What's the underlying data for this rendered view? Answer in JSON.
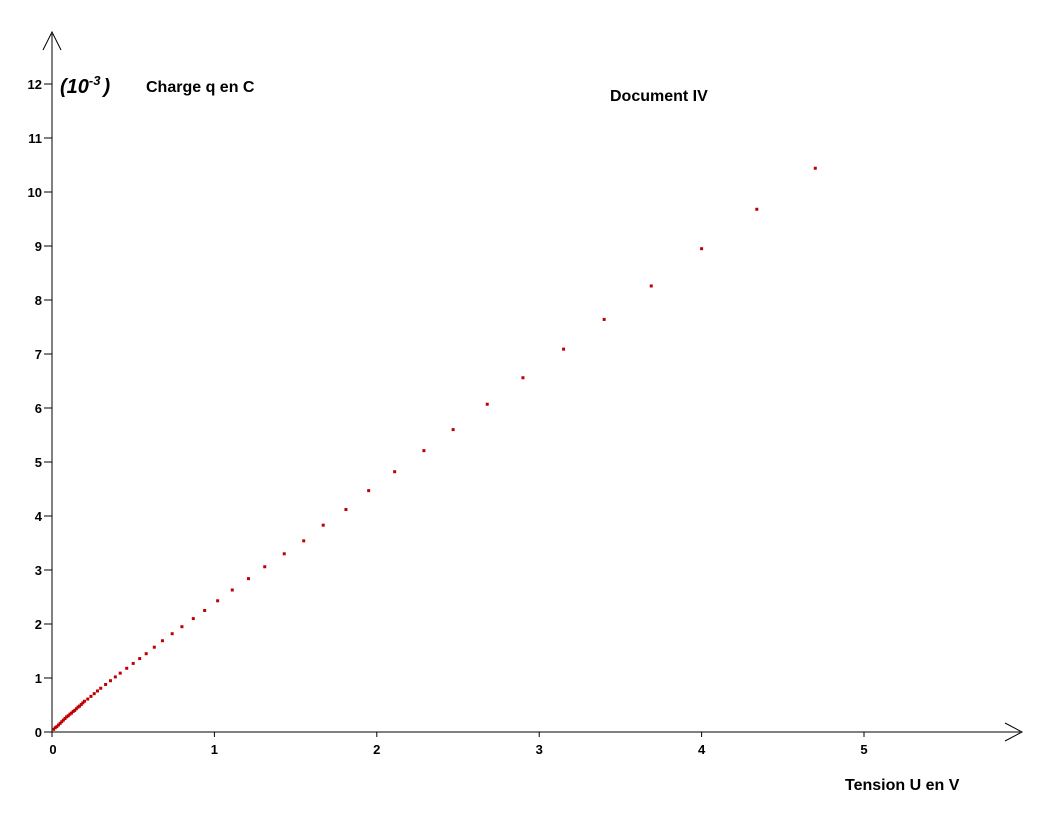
{
  "document_label": "Document IV",
  "chart_data": {
    "type": "scatter",
    "title": "",
    "ylabel_factor": "(10",
    "ylabel_exponent": "-3",
    "ylabel_factor_close": ")",
    "ylabel": "Charge q en C",
    "xlabel": "Tension U en V",
    "xlim": [
      0,
      5.9
    ],
    "ylim": [
      0,
      12.8
    ],
    "x_ticks": [
      "0",
      "1",
      "2",
      "3",
      "4",
      "5"
    ],
    "y_ticks": [
      "0",
      "1",
      "2",
      "3",
      "4",
      "5",
      "6",
      "7",
      "8",
      "9",
      "10",
      "11",
      "12"
    ],
    "grid": false,
    "point_color": "#c00000",
    "series": [
      {
        "x": [
          0.01,
          0.02,
          0.03,
          0.04,
          0.05,
          0.06,
          0.07,
          0.08,
          0.09,
          0.1,
          0.11,
          0.12,
          0.13,
          0.14,
          0.15,
          0.16,
          0.17,
          0.18,
          0.19,
          0.2,
          0.22,
          0.24,
          0.26,
          0.28,
          0.3,
          0.33,
          0.36,
          0.39,
          0.42,
          0.46,
          0.5,
          0.54,
          0.58,
          0.63,
          0.68,
          0.74,
          0.8,
          0.87,
          0.94,
          1.02,
          1.11,
          1.21,
          1.31,
          1.43,
          1.55,
          1.67,
          1.81,
          1.95,
          2.11,
          2.29,
          2.47,
          2.68,
          2.9,
          3.15,
          3.4,
          3.69,
          4.0,
          4.34,
          4.7
        ],
        "y": [
          0.05,
          0.08,
          0.1,
          0.13,
          0.16,
          0.19,
          0.22,
          0.25,
          0.28,
          0.3,
          0.33,
          0.35,
          0.38,
          0.4,
          0.43,
          0.46,
          0.48,
          0.51,
          0.54,
          0.57,
          0.61,
          0.66,
          0.71,
          0.76,
          0.81,
          0.88,
          0.95,
          1.02,
          1.09,
          1.18,
          1.27,
          1.36,
          1.45,
          1.57,
          1.69,
          1.82,
          1.95,
          2.1,
          2.25,
          2.43,
          2.63,
          2.84,
          3.06,
          3.3,
          3.54,
          3.83,
          4.12,
          4.47,
          4.82,
          5.21,
          5.6,
          6.07,
          6.56,
          7.09,
          7.64,
          8.26,
          8.95,
          9.68,
          10.44
        ]
      }
    ]
  }
}
